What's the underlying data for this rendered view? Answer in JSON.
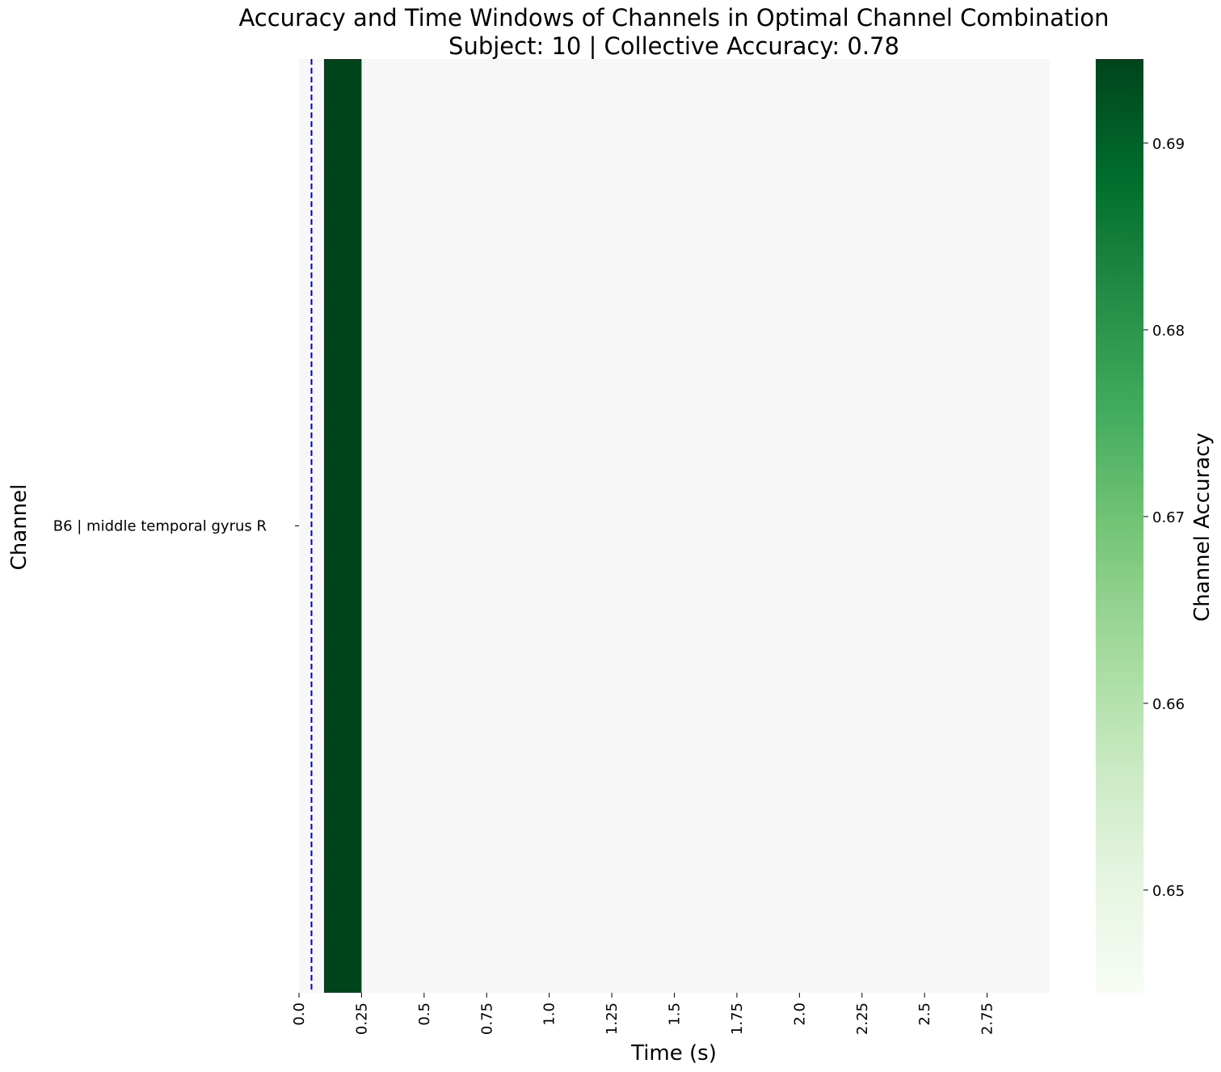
{
  "chart_data": {
    "type": "heatmap",
    "title": "Accuracy and Time Windows of Channels in Optimal Channel Combination",
    "subtitle": "Subject: 10 | Collective Accuracy: 0.78",
    "xlabel": "Time (s)",
    "ylabel": "Channel",
    "colorbar_label": "Channel Accuracy",
    "colormap": "Greens",
    "background_color": "#f7f7f7",
    "xlim": [
      0,
      3.0
    ],
    "x_ticks": [
      0.0,
      0.25,
      0.5,
      0.75,
      1.0,
      1.25,
      1.5,
      1.75,
      2.0,
      2.25,
      2.5,
      2.75
    ],
    "x_tick_labels": [
      "0.0",
      "0.25",
      "0.5",
      "0.75",
      "1.0",
      "1.25",
      "1.5",
      "1.75",
      "2.0",
      "2.25",
      "2.5",
      "2.75"
    ],
    "rows": [
      {
        "label": "B6 | middle temporal gyrus R",
        "windows": [
          {
            "start": 0.1,
            "end": 0.25,
            "value": 0.695
          }
        ]
      }
    ],
    "marker_line": {
      "x": 0.05,
      "color": "#0000cc",
      "style": "dashed"
    },
    "color_range": [
      0.6445,
      0.6945
    ],
    "colorbar_ticks": [
      0.65,
      0.66,
      0.67,
      0.68,
      0.69
    ],
    "colorbar_tick_labels": [
      "0.65",
      "0.66",
      "0.67",
      "0.68",
      "0.69"
    ]
  }
}
